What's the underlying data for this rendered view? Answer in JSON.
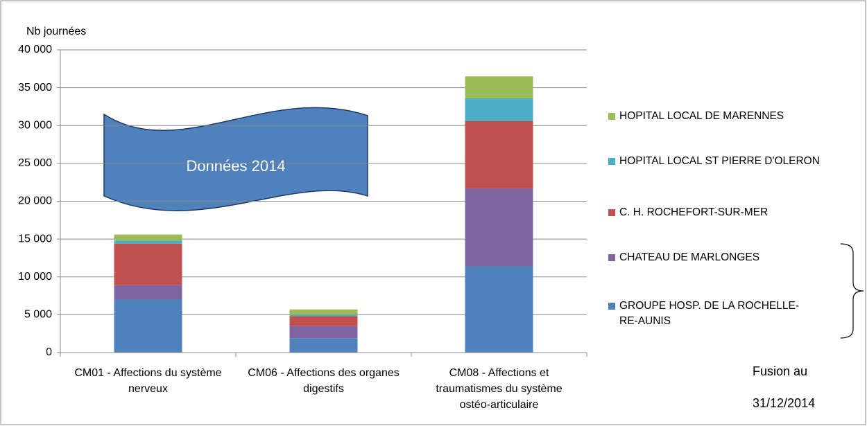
{
  "chart_data": {
    "type": "stacked_bar",
    "y_label": "Nb journées",
    "categories": [
      "CM01 - Affections du système nerveux",
      "CM06 - Affections des organes digestifs",
      "CM08 - Affections et traumatismes du système ostéo-articulaire"
    ],
    "series": [
      {
        "name": "GROUPE HOSP. DE LA ROCHELLE-RE-AUNIS",
        "color": "#4f81bd",
        "values": [
          7000,
          1900,
          11400
        ]
      },
      {
        "name": "CHATEAU DE MARLONGES",
        "color": "#8064a2",
        "values": [
          1900,
          1600,
          10300
        ]
      },
      {
        "name": "C. H. ROCHEFORT-SUR-MER",
        "color": "#c0504d",
        "values": [
          5500,
          1300,
          8900
        ]
      },
      {
        "name": "HOPITAL LOCAL ST PIERRE D'OLERON",
        "color": "#4bacc6",
        "values": [
          400,
          200,
          3000
        ]
      },
      {
        "name": "HOPITAL LOCAL DE MARENNES",
        "color": "#9bbb59",
        "values": [
          800,
          700,
          2900
        ]
      }
    ],
    "ylim": [
      0,
      40000
    ],
    "yticks": [
      0,
      {
        "value": 5000,
        "label": "5 000"
      },
      {
        "value": 10000,
        "label": "10 000"
      },
      {
        "value": 15000,
        "label": "15 000"
      },
      {
        "value": 20000,
        "label": "20 000"
      },
      {
        "value": 25000,
        "label": "25 000"
      },
      {
        "value": 30000,
        "label": "30 000"
      },
      {
        "value": 35000,
        "label": "35 000"
      },
      {
        "value": 40000,
        "label": "40 000"
      }
    ],
    "grid": true,
    "legend": "right",
    "annotations": [
      "Données 2014",
      "Fusion au",
      "31/12/2014"
    ]
  }
}
